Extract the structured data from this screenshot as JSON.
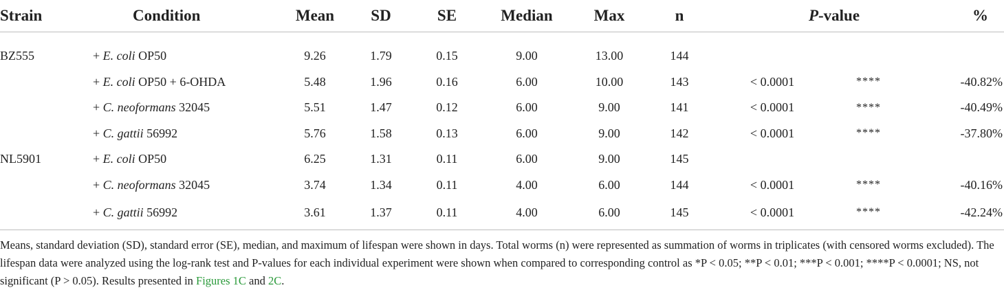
{
  "headers": {
    "strain": "Strain",
    "condition": "Condition",
    "mean": "Mean",
    "sd": "SD",
    "se": "SE",
    "median": "Median",
    "max": "Max",
    "n": "n",
    "p_italic": "P",
    "p_rest": "-value",
    "pct": "%"
  },
  "rows": [
    {
      "strain": "BZ555",
      "cond_prefix": "+ ",
      "cond_italic": "E. coli",
      "cond_suffix": " OP50",
      "mean": "9.26",
      "sd": "1.79",
      "se": "0.15",
      "median": "9.00",
      "max": "13.00",
      "n": "144",
      "pvalue": "",
      "sig": "",
      "pct": ""
    },
    {
      "strain": "",
      "cond_prefix": "+ ",
      "cond_italic": "E. coli",
      "cond_suffix": " OP50 + 6-OHDA",
      "mean": "5.48",
      "sd": "1.96",
      "se": "0.16",
      "median": "6.00",
      "max": "10.00",
      "n": "143",
      "pvalue": "< 0.0001",
      "sig": "****",
      "pct": "-40.82%"
    },
    {
      "strain": "",
      "cond_prefix": "+ ",
      "cond_italic": "C. neoformans",
      "cond_suffix": " 32045",
      "mean": "5.51",
      "sd": "1.47",
      "se": "0.12",
      "median": "6.00",
      "max": "9.00",
      "n": "141",
      "pvalue": "< 0.0001",
      "sig": "****",
      "pct": "-40.49%"
    },
    {
      "strain": "",
      "cond_prefix": "+ ",
      "cond_italic": "C. gattii",
      "cond_suffix": " 56992",
      "mean": "5.76",
      "sd": "1.58",
      "se": "0.13",
      "median": "6.00",
      "max": "9.00",
      "n": "142",
      "pvalue": "< 0.0001",
      "sig": "****",
      "pct": "-37.80%"
    },
    {
      "strain": "NL5901",
      "cond_prefix": "+ ",
      "cond_italic": "E. coli",
      "cond_suffix": " OP50",
      "mean": "6.25",
      "sd": "1.31",
      "se": "0.11",
      "median": "6.00",
      "max": "9.00",
      "n": "145",
      "pvalue": "",
      "sig": "",
      "pct": ""
    },
    {
      "strain": "",
      "cond_prefix": "+ ",
      "cond_italic": "C. neoformans",
      "cond_suffix": " 32045",
      "mean": "3.74",
      "sd": "1.34",
      "se": "0.11",
      "median": "4.00",
      "max": "6.00",
      "n": "144",
      "pvalue": "< 0.0001",
      "sig": "****",
      "pct": "-40.16%"
    },
    {
      "strain": "",
      "cond_prefix": "+ ",
      "cond_italic": "C. gattii",
      "cond_suffix": " 56992",
      "mean": "3.61",
      "sd": "1.37",
      "se": "0.11",
      "median": "4.00",
      "max": "6.00",
      "n": "145",
      "pvalue": "< 0.0001",
      "sig": "****",
      "pct": "-42.24%"
    }
  ],
  "footnote": {
    "text": "Means, standard deviation (SD), standard error (SE), median, and maximum of lifespan were shown in days. Total worms (n) were represented as summation of worms in triplicates (with censored worms excluded). The lifespan data were analyzed using the log-rank test and P-values for each individual experiment were shown when compared to corresponding control as *P < 0.05; **P < 0.01; ***P < 0.001; ****P < 0.0001; NS, not significant (P > 0.05). Results presented in ",
    "link1": "Figures 1C",
    "middle": " and ",
    "link2": "2C",
    "end": ".",
    "link_color": "#2a9a3a"
  }
}
